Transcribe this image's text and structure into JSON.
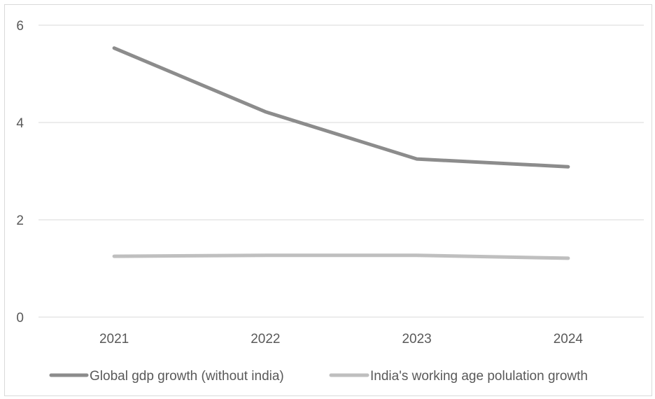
{
  "chart_data": {
    "type": "line",
    "categories": [
      "2021",
      "2022",
      "2023",
      "2024"
    ],
    "series": [
      {
        "name": "Global gdp growth (without india)",
        "values": [
          5.53,
          4.22,
          3.25,
          3.09
        ],
        "color": "#8c8c8c"
      },
      {
        "name": "India's working age polulation growth",
        "values": [
          1.25,
          1.27,
          1.27,
          1.21
        ],
        "color": "#bfbfbf"
      }
    ],
    "ylim": [
      0,
      6
    ],
    "yticks": [
      0,
      2,
      4,
      6
    ],
    "grid": true,
    "legend": "bottom",
    "title": "",
    "xlabel": "",
    "ylabel": ""
  }
}
